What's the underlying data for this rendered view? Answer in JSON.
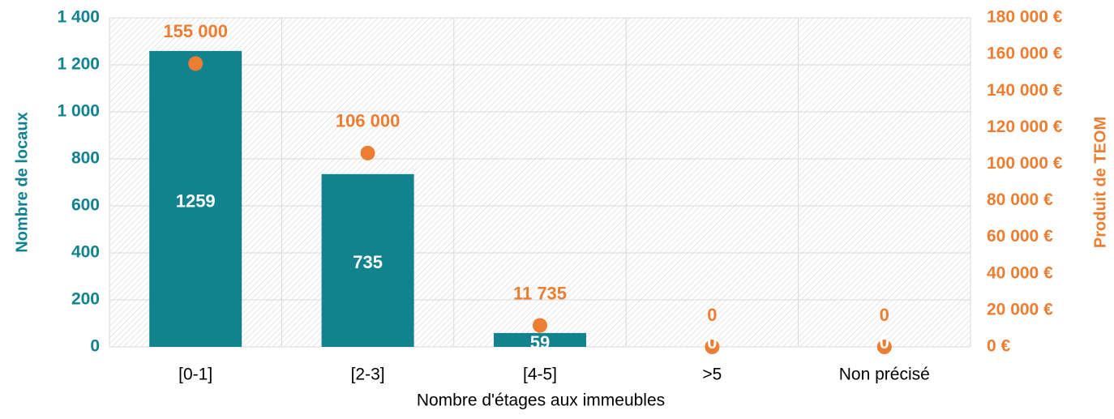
{
  "chart_data": {
    "type": "bar-dot",
    "xlabel": "Nombre d'étages aux immeubles",
    "ylabel": "Nombre de locaux",
    "y2label": "Produit de TEOM",
    "categories": [
      "[0-1]",
      "[2-3]",
      "[4-5]",
      ">5",
      "Non précisé"
    ],
    "series": [
      {
        "color": "#10838f",
        "values": [
          1259,
          735,
          59,
          0,
          0
        ]
      },
      {
        "color": "#ed7d31",
        "axis": "y2",
        "values": [
          155000,
          106000,
          11735,
          0,
          0
        ],
        "value_labels": [
          "155 000",
          "106 000",
          "11 735",
          "0",
          "0"
        ]
      }
    ],
    "ylim": [
      0,
      1400
    ],
    "yticks": [
      0,
      200,
      400,
      600,
      800,
      {
        "value": 1000,
        "label": "1 000"
      },
      {
        "value": 1200,
        "label": "1 200"
      },
      {
        "value": 1400,
        "label": "1 400"
      }
    ],
    "y2lim": [
      0,
      180000
    ],
    "y2ticks": [
      {
        "value": 0,
        "label": "0 €"
      },
      {
        "value": 20000,
        "label": "20 000 €"
      },
      {
        "value": 40000,
        "label": "40 000 €"
      },
      {
        "value": 60000,
        "label": "60 000 €"
      },
      {
        "value": 80000,
        "label": "80 000 €"
      },
      {
        "value": 100000,
        "label": "100 000 €"
      },
      {
        "value": 120000,
        "label": "120 000 €"
      },
      {
        "value": 140000,
        "label": "140 000 €"
      },
      {
        "value": 160000,
        "label": "160 000 €"
      },
      {
        "value": 180000,
        "label": "180 000 €"
      }
    ],
    "grid": true
  }
}
